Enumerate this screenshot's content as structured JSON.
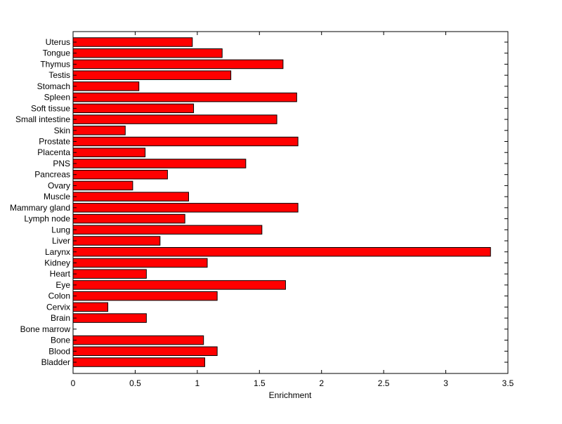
{
  "chart_data": {
    "type": "bar",
    "orientation": "horizontal",
    "title": "",
    "xlabel": "Enrichment",
    "ylabel": "",
    "xlim": [
      0,
      3.5
    ],
    "xticks": [
      0,
      0.5,
      1,
      1.5,
      2,
      2.5,
      3,
      3.5
    ],
    "xtick_labels": [
      "0",
      "0.5",
      "1",
      "1.5",
      "2",
      "2.5",
      "3",
      "3.5"
    ],
    "grid": false,
    "legend": "none",
    "bar_color": "#ff0000",
    "bar_edge_color": "#000000",
    "categories": [
      "Uterus",
      "Tongue",
      "Thymus",
      "Testis",
      "Stomach",
      "Spleen",
      "Soft tissue",
      "Small intestine",
      "Skin",
      "Prostate",
      "Placenta",
      "PNS",
      "Pancreas",
      "Ovary",
      "Muscle",
      "Mammary gland",
      "Lymph node",
      "Lung",
      "Liver",
      "Larynx",
      "Kidney",
      "Heart",
      "Eye",
      "Colon",
      "Cervix",
      "Brain",
      "Bone marrow",
      "Bone",
      "Blood",
      "Bladder"
    ],
    "values": [
      0.96,
      1.2,
      1.69,
      1.27,
      0.53,
      1.8,
      0.97,
      1.64,
      0.42,
      1.81,
      0.58,
      1.39,
      0.76,
      0.48,
      0.93,
      1.81,
      0.9,
      1.52,
      0.7,
      3.36,
      1.08,
      0.59,
      1.71,
      1.16,
      0.28,
      0.59,
      0.0,
      1.05,
      1.16,
      1.06
    ]
  }
}
